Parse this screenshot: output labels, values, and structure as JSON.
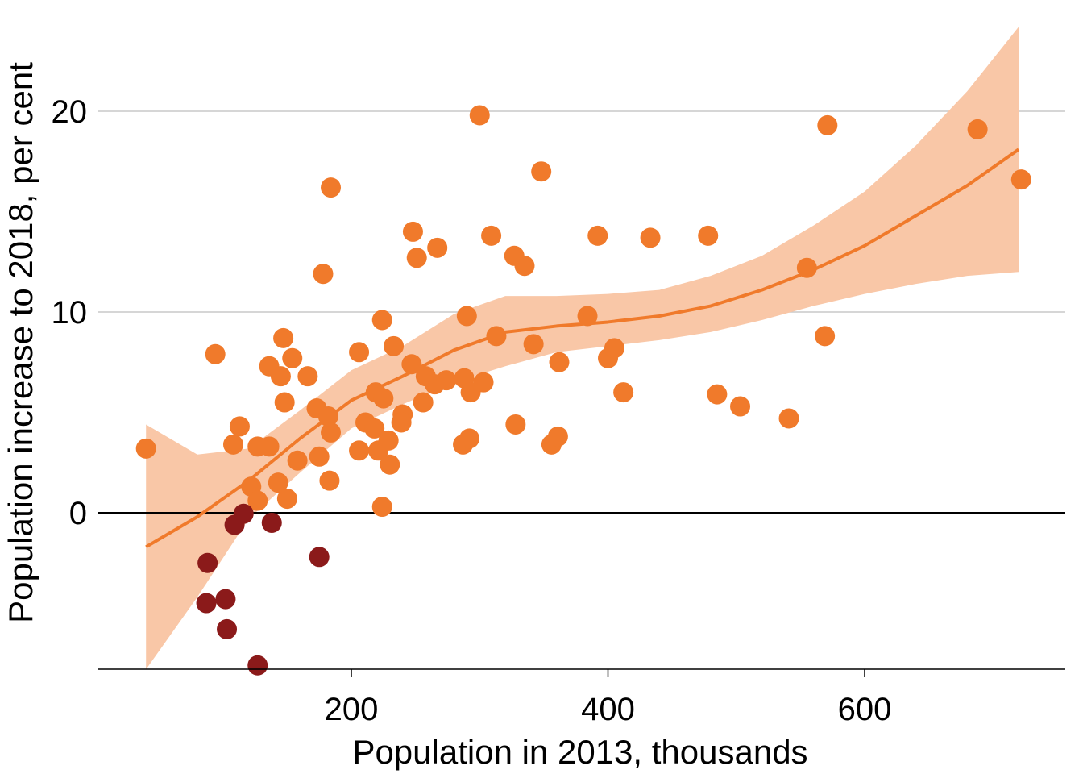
{
  "chart_data": {
    "type": "scatter",
    "xlabel": "Population in 2013, thousands",
    "ylabel": "Population increase to 2018, per cent",
    "xlim": [
      -10,
      760
    ],
    "ylim": [
      -7.9,
      24.5
    ],
    "x_ticks": [
      200,
      400,
      600
    ],
    "y_ticks": [
      0,
      10,
      20
    ],
    "grid": "horizontal",
    "colors": {
      "points_positive": "#f07a2b",
      "points_negative": "#8b1a1a",
      "trend_line": "#f07a2b",
      "confidence_band": "#f9c7a7",
      "zero_line": "#000000",
      "grid": "#c8c8c8"
    },
    "series": [
      {
        "kind": "points",
        "values": [
          {
            "x": 40,
            "y": 3.2
          },
          {
            "x": 94,
            "y": 7.9
          },
          {
            "x": 108,
            "y": 3.4
          },
          {
            "x": 113,
            "y": 4.3
          },
          {
            "x": 122,
            "y": 1.3
          },
          {
            "x": 127,
            "y": 0.6
          },
          {
            "x": 127,
            "y": 3.3
          },
          {
            "x": 136,
            "y": 3.3
          },
          {
            "x": 136,
            "y": 7.3
          },
          {
            "x": 143,
            "y": 1.5
          },
          {
            "x": 145,
            "y": 6.8
          },
          {
            "x": 147,
            "y": 8.7
          },
          {
            "x": 148,
            "y": 5.5
          },
          {
            "x": 150,
            "y": 0.7
          },
          {
            "x": 154,
            "y": 7.7
          },
          {
            "x": 158,
            "y": 2.6
          },
          {
            "x": 166,
            "y": 6.8
          },
          {
            "x": 173,
            "y": 5.2
          },
          {
            "x": 175,
            "y": 2.8
          },
          {
            "x": 178,
            "y": 11.9
          },
          {
            "x": 182,
            "y": 4.8
          },
          {
            "x": 184,
            "y": 16.2
          },
          {
            "x": 183,
            "y": 1.6
          },
          {
            "x": 184,
            "y": 4.0
          },
          {
            "x": 206,
            "y": 8.0
          },
          {
            "x": 206,
            "y": 3.1
          },
          {
            "x": 211,
            "y": 4.5
          },
          {
            "x": 218,
            "y": 4.2
          },
          {
            "x": 219,
            "y": 6.0
          },
          {
            "x": 221,
            "y": 3.1
          },
          {
            "x": 224,
            "y": 9.6
          },
          {
            "x": 225,
            "y": 5.7
          },
          {
            "x": 224,
            "y": 0.3
          },
          {
            "x": 229,
            "y": 3.6
          },
          {
            "x": 230,
            "y": 2.4
          },
          {
            "x": 233,
            "y": 8.3
          },
          {
            "x": 240,
            "y": 4.9
          },
          {
            "x": 239,
            "y": 4.5
          },
          {
            "x": 247,
            "y": 7.4
          },
          {
            "x": 248,
            "y": 14.0
          },
          {
            "x": 251,
            "y": 12.7
          },
          {
            "x": 256,
            "y": 5.5
          },
          {
            "x": 258,
            "y": 6.8
          },
          {
            "x": 265,
            "y": 6.4
          },
          {
            "x": 267,
            "y": 13.2
          },
          {
            "x": 274,
            "y": 6.6
          },
          {
            "x": 287,
            "y": 3.4
          },
          {
            "x": 288,
            "y": 6.7
          },
          {
            "x": 290,
            "y": 9.8
          },
          {
            "x": 292,
            "y": 3.7
          },
          {
            "x": 293,
            "y": 6.0
          },
          {
            "x": 300,
            "y": 19.8
          },
          {
            "x": 303,
            "y": 6.5
          },
          {
            "x": 309,
            "y": 13.8
          },
          {
            "x": 313,
            "y": 8.8
          },
          {
            "x": 328,
            "y": 4.4
          },
          {
            "x": 327,
            "y": 12.8
          },
          {
            "x": 335,
            "y": 12.3
          },
          {
            "x": 342,
            "y": 8.4
          },
          {
            "x": 348,
            "y": 17.0
          },
          {
            "x": 356,
            "y": 3.4
          },
          {
            "x": 361,
            "y": 3.8
          },
          {
            "x": 362,
            "y": 7.5
          },
          {
            "x": 384,
            "y": 9.8
          },
          {
            "x": 392,
            "y": 13.8
          },
          {
            "x": 400,
            "y": 7.7
          },
          {
            "x": 405,
            "y": 8.2
          },
          {
            "x": 412,
            "y": 6.0
          },
          {
            "x": 433,
            "y": 13.7
          },
          {
            "x": 478,
            "y": 13.8
          },
          {
            "x": 485,
            "y": 5.9
          },
          {
            "x": 503,
            "y": 5.3
          },
          {
            "x": 541,
            "y": 4.7
          },
          {
            "x": 555,
            "y": 12.2
          },
          {
            "x": 569,
            "y": 8.8
          },
          {
            "x": 571,
            "y": 19.3
          },
          {
            "x": 688,
            "y": 19.1
          },
          {
            "x": 722,
            "y": 16.6
          }
        ]
      },
      {
        "kind": "points",
        "values": [
          {
            "x": 88,
            "y": -2.5
          },
          {
            "x": 87,
            "y": -4.5
          },
          {
            "x": 102,
            "y": -4.3
          },
          {
            "x": 103,
            "y": -5.8
          },
          {
            "x": 109,
            "y": -0.6
          },
          {
            "x": 116,
            "y": -0.05
          },
          {
            "x": 138,
            "y": -0.5
          },
          {
            "x": 175,
            "y": -2.2
          },
          {
            "x": 127,
            "y": -7.6
          }
        ]
      },
      {
        "kind": "trend",
        "x": [
          40,
          80,
          120,
          160,
          200,
          240,
          280,
          320,
          360,
          400,
          440,
          480,
          520,
          560,
          600,
          640,
          680,
          720
        ],
        "y": [
          -1.7,
          -0.2,
          1.6,
          3.7,
          5.6,
          6.8,
          8.1,
          9.0,
          9.3,
          9.5,
          9.8,
          10.3,
          11.1,
          12.1,
          13.3,
          14.8,
          16.3,
          18.1
        ],
        "lower": [
          -7.8,
          -4.2,
          -0.3,
          2.0,
          4.2,
          5.4,
          6.5,
          7.3,
          8.0,
          8.3,
          8.6,
          9.0,
          9.6,
          10.3,
          10.9,
          11.4,
          11.8,
          12.0
        ],
        "upper": [
          4.4,
          2.9,
          3.2,
          5.1,
          7.1,
          8.3,
          9.9,
          10.8,
          10.8,
          10.9,
          11.1,
          11.8,
          12.8,
          14.3,
          16.0,
          18.3,
          21.0,
          24.2
        ]
      }
    ]
  }
}
